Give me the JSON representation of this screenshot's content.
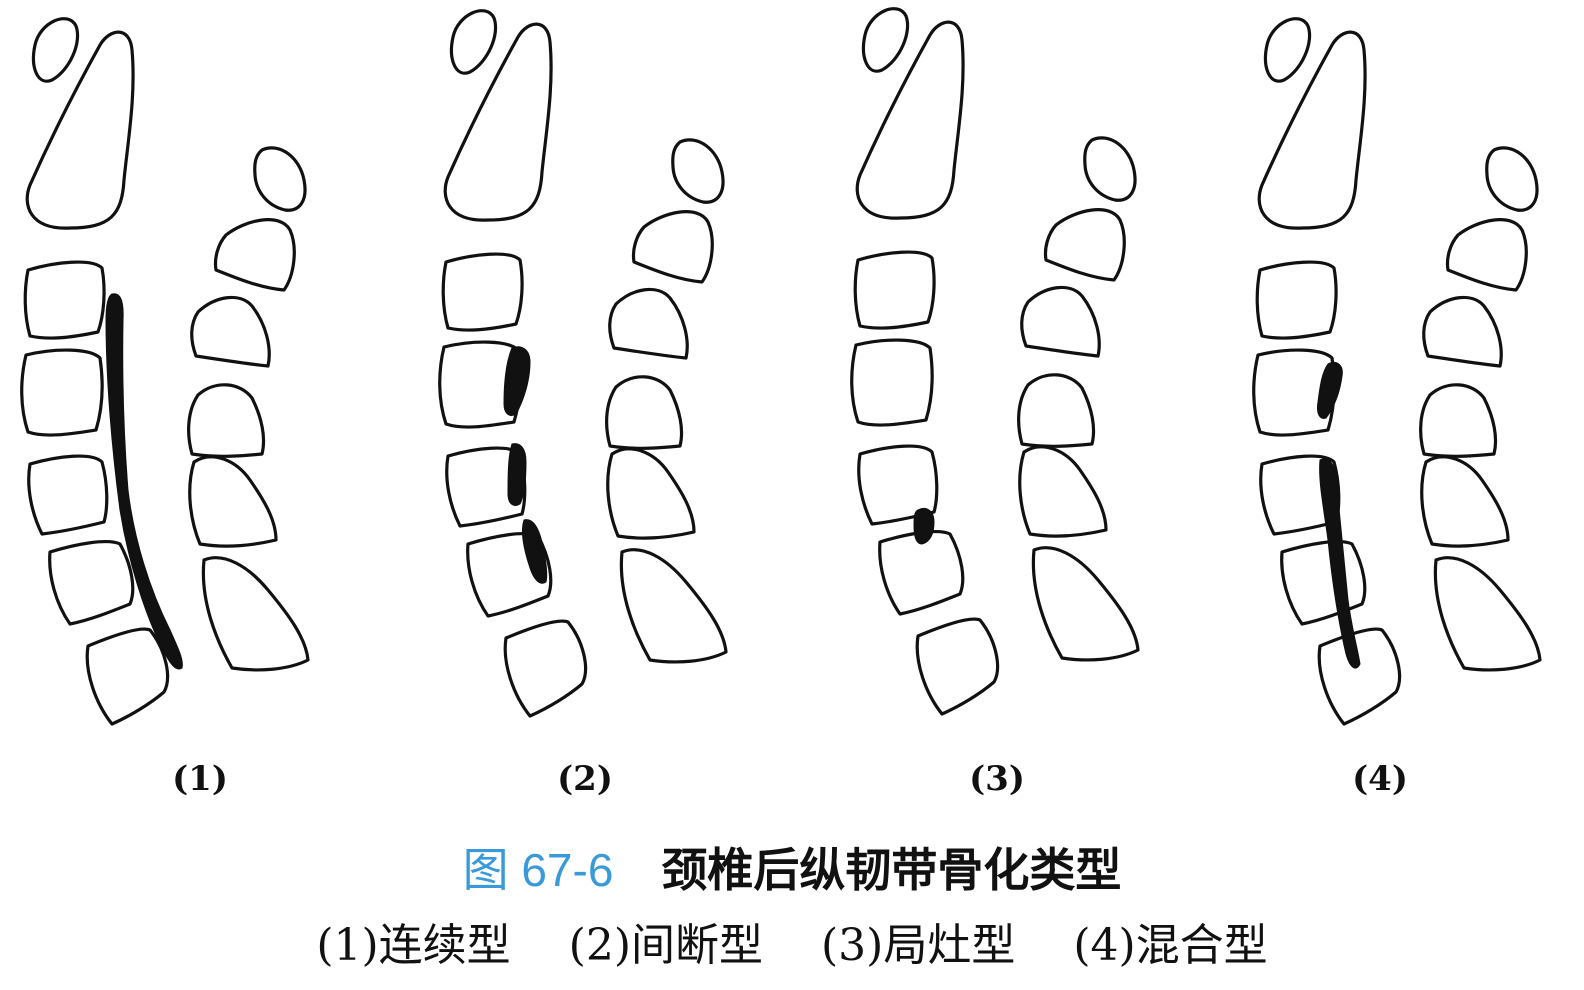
{
  "figure": {
    "panels": [
      {
        "label": "(1)"
      },
      {
        "label": "(2)"
      },
      {
        "label": "(3)"
      },
      {
        "label": "(4)"
      }
    ]
  },
  "caption": {
    "number": "图 67-6",
    "title": "颈椎后纵韧带骨化类型"
  },
  "subcaption": {
    "items": [
      "(1)连续型",
      "(2)间断型",
      "(3)局灶型",
      "(4)混合型"
    ]
  },
  "colors": {
    "caption_number": "#3a9ad9",
    "line": "#111111",
    "background": "#ffffff"
  }
}
